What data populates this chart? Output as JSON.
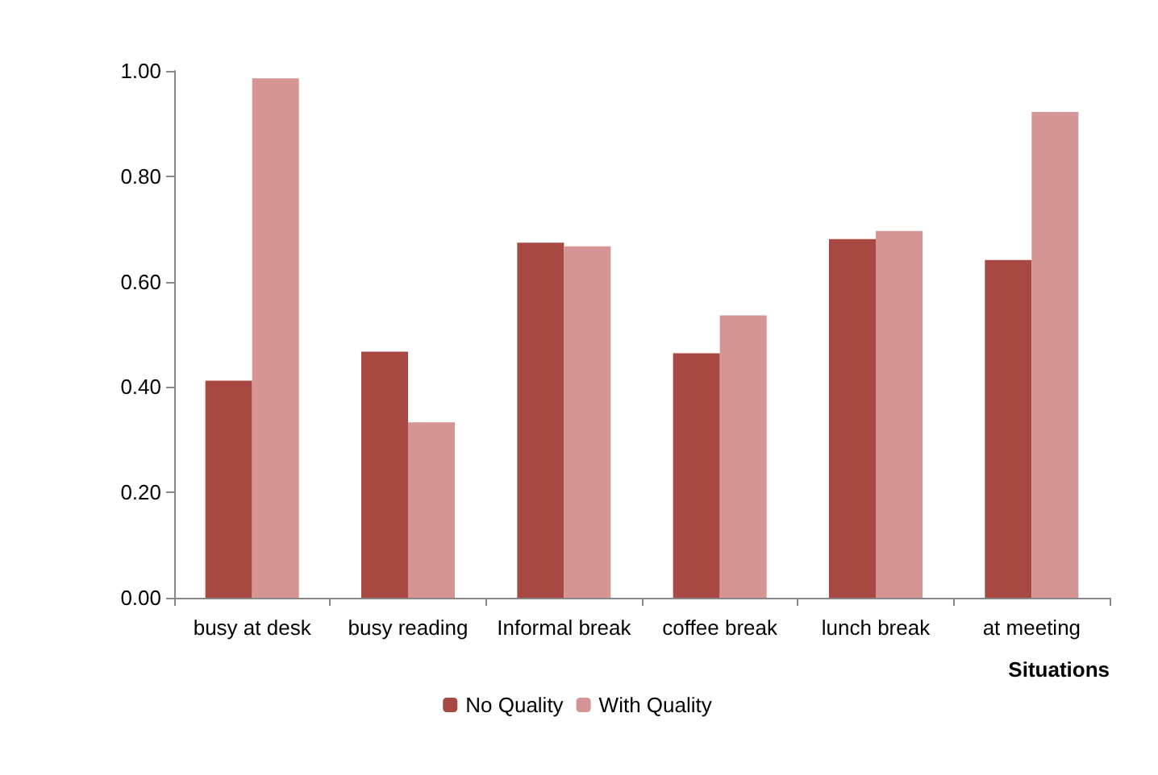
{
  "chart_data": {
    "type": "bar",
    "xlabel": "Situations",
    "categories": [
      "busy at desk",
      "busy reading",
      "Informal break",
      "coffee break",
      "lunch break",
      "at meeting"
    ],
    "series": [
      {
        "name": "No Quality",
        "color": "#a84842",
        "values": [
          0.412,
          0.467,
          0.674,
          0.464,
          0.681,
          0.641
        ]
      },
      {
        "name": "With Quality",
        "color": "#d49594",
        "values": [
          0.986,
          0.333,
          0.667,
          0.536,
          0.696,
          0.922
        ]
      }
    ],
    "ylim": [
      0,
      1
    ],
    "yticks": [
      {
        "value": 0,
        "label": "0.00"
      },
      {
        "value": 0.2,
        "label": "0.20"
      },
      {
        "value": 0.4,
        "label": "0.40"
      },
      {
        "value": 0.6,
        "label": "0.60"
      },
      {
        "value": 0.8,
        "label": "0.80"
      },
      {
        "value": 1,
        "label": "1.00"
      }
    ],
    "grid": false,
    "legend": "bottom"
  }
}
